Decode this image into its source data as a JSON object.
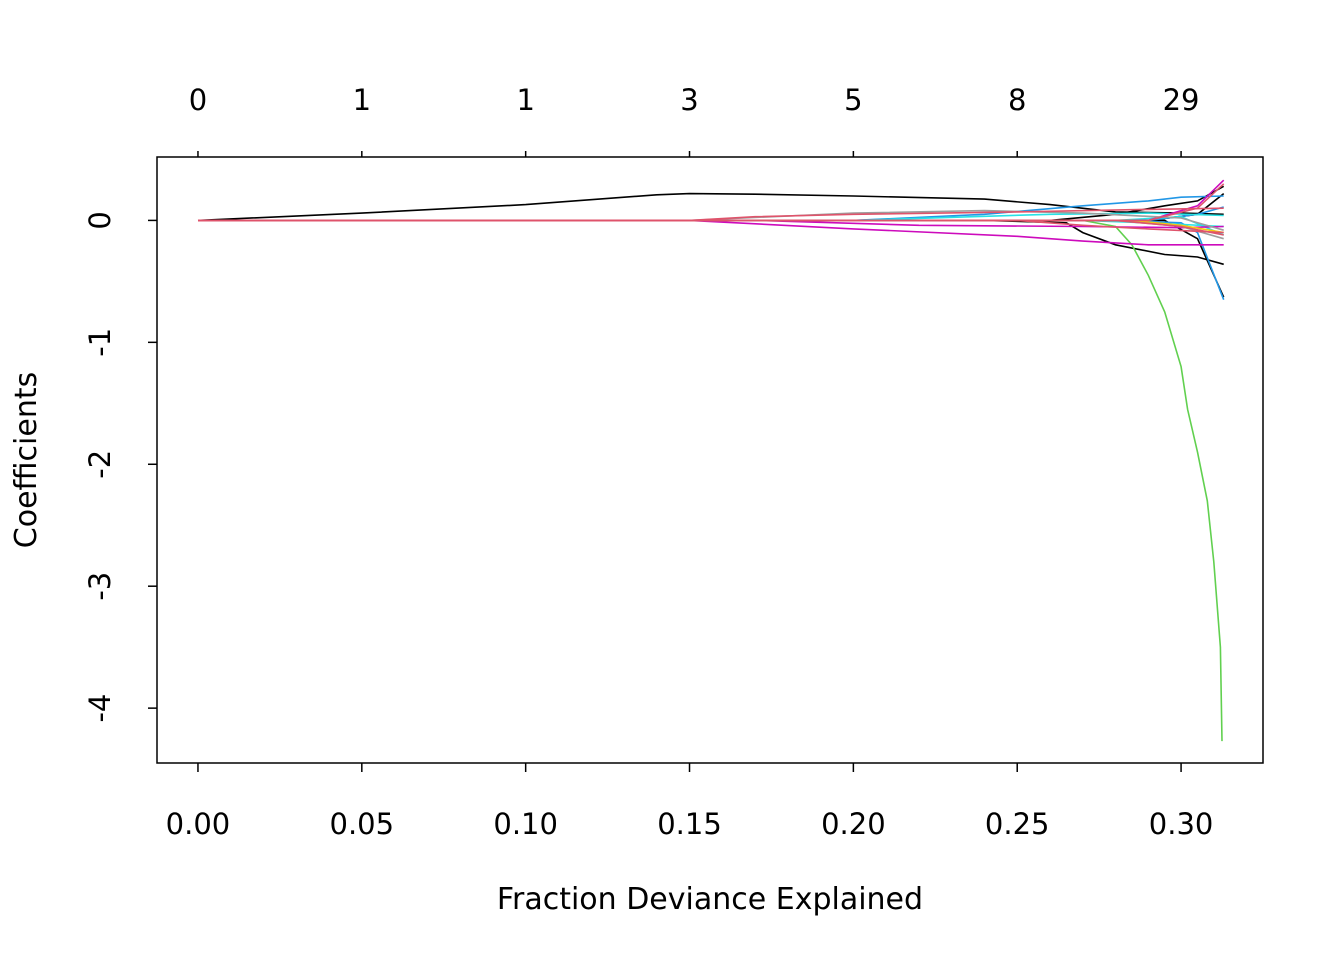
{
  "chart_data": {
    "type": "line",
    "title": "",
    "xlabel": "Fraction Deviance Explained",
    "ylabel": "Coefficients",
    "xlim": [
      -0.0125,
      0.325
    ],
    "ylim": [
      -4.45,
      0.52
    ],
    "grid": false,
    "x_ticks": [
      {
        "value": 0.0,
        "label": "0.00"
      },
      {
        "value": 0.05,
        "label": "0.05"
      },
      {
        "value": 0.1,
        "label": "0.10"
      },
      {
        "value": 0.15,
        "label": "0.15"
      },
      {
        "value": 0.2,
        "label": "0.20"
      },
      {
        "value": 0.25,
        "label": "0.25"
      },
      {
        "value": 0.3,
        "label": "0.30"
      }
    ],
    "y_ticks": [
      {
        "value": 0,
        "label": "0"
      },
      {
        "value": -1,
        "label": "-1"
      },
      {
        "value": -2,
        "label": "-2"
      },
      {
        "value": -3,
        "label": "-3"
      },
      {
        "value": -4,
        "label": "-4"
      }
    ],
    "top_ticks": [
      {
        "value": 0.0,
        "label": "0"
      },
      {
        "value": 0.05,
        "label": "1"
      },
      {
        "value": 0.1,
        "label": "1"
      },
      {
        "value": 0.15,
        "label": "3"
      },
      {
        "value": 0.2,
        "label": "5"
      },
      {
        "value": 0.25,
        "label": "8"
      },
      {
        "value": 0.3,
        "label": "29"
      }
    ],
    "series": [
      {
        "color": "#000000",
        "points": [
          [
            0,
            0
          ],
          [
            0.05,
            0.06
          ],
          [
            0.1,
            0.13
          ],
          [
            0.14,
            0.21
          ],
          [
            0.15,
            0.22
          ],
          [
            0.17,
            0.215
          ],
          [
            0.2,
            0.2
          ],
          [
            0.24,
            0.175
          ],
          [
            0.26,
            0.13
          ],
          [
            0.28,
            0.07
          ],
          [
            0.3,
            0.06
          ],
          [
            0.313,
            0.05
          ]
        ]
      },
      {
        "color": "#000000",
        "points": [
          [
            0,
            0
          ],
          [
            0.24,
            0
          ],
          [
            0.265,
            -0.02
          ],
          [
            0.27,
            -0.1
          ],
          [
            0.28,
            -0.2
          ],
          [
            0.295,
            -0.28
          ],
          [
            0.305,
            -0.3
          ],
          [
            0.313,
            -0.36
          ]
        ]
      },
      {
        "color": "#000000",
        "points": [
          [
            0,
            0
          ],
          [
            0.26,
            0
          ],
          [
            0.28,
            0.05
          ],
          [
            0.295,
            0.12
          ],
          [
            0.305,
            0.16
          ],
          [
            0.313,
            0.28
          ]
        ]
      },
      {
        "color": "#000000",
        "points": [
          [
            0,
            0
          ],
          [
            0.29,
            0
          ],
          [
            0.305,
            0.05
          ],
          [
            0.313,
            0.22
          ]
        ]
      },
      {
        "color": "#000000",
        "points": [
          [
            0,
            0
          ],
          [
            0.295,
            0
          ],
          [
            0.305,
            -0.15
          ],
          [
            0.313,
            -0.63
          ]
        ]
      },
      {
        "color": "#61D04F",
        "points": [
          [
            0,
            0
          ],
          [
            0.27,
            0
          ],
          [
            0.28,
            -0.05
          ],
          [
            0.285,
            -0.2
          ],
          [
            0.29,
            -0.45
          ],
          [
            0.295,
            -0.75
          ],
          [
            0.3,
            -1.2
          ],
          [
            0.302,
            -1.55
          ],
          [
            0.305,
            -1.9
          ],
          [
            0.308,
            -2.3
          ],
          [
            0.31,
            -2.8
          ],
          [
            0.312,
            -3.5
          ],
          [
            0.3125,
            -4.27
          ]
        ]
      },
      {
        "color": "#2297E6",
        "points": [
          [
            0,
            0
          ],
          [
            0.2,
            0
          ],
          [
            0.24,
            0.05
          ],
          [
            0.27,
            0.12
          ],
          [
            0.29,
            0.16
          ],
          [
            0.3,
            0.19
          ],
          [
            0.313,
            0.2
          ]
        ]
      },
      {
        "color": "#2297E6",
        "points": [
          [
            0,
            0
          ],
          [
            0.28,
            0
          ],
          [
            0.3,
            -0.02
          ],
          [
            0.305,
            -0.1
          ],
          [
            0.313,
            -0.65
          ]
        ]
      },
      {
        "color": "#2297E6",
        "points": [
          [
            0,
            0
          ],
          [
            0.29,
            0
          ],
          [
            0.305,
            0.05
          ],
          [
            0.313,
            0.11
          ]
        ]
      },
      {
        "color": "#28E2E5",
        "points": [
          [
            0,
            0
          ],
          [
            0.2,
            0
          ],
          [
            0.26,
            0.05
          ],
          [
            0.29,
            0.06
          ],
          [
            0.313,
            0.04
          ]
        ]
      },
      {
        "color": "#28E2E5",
        "points": [
          [
            0,
            0
          ],
          [
            0.27,
            0
          ],
          [
            0.29,
            -0.02
          ],
          [
            0.313,
            -0.05
          ]
        ]
      },
      {
        "color": "#28E2E5",
        "points": [
          [
            0,
            0
          ],
          [
            0.28,
            0
          ],
          [
            0.3,
            0.03
          ],
          [
            0.313,
            -0.12
          ]
        ]
      },
      {
        "color": "#CD0BBC",
        "points": [
          [
            0,
            0
          ],
          [
            0.15,
            0
          ],
          [
            0.2,
            -0.07
          ],
          [
            0.25,
            -0.13
          ],
          [
            0.27,
            -0.17
          ],
          [
            0.29,
            -0.2
          ],
          [
            0.313,
            -0.2
          ]
        ]
      },
      {
        "color": "#CD0BBC",
        "points": [
          [
            0,
            0
          ],
          [
            0.17,
            0
          ],
          [
            0.22,
            -0.04
          ],
          [
            0.27,
            -0.05
          ],
          [
            0.3,
            -0.06
          ],
          [
            0.313,
            -0.05
          ]
        ]
      },
      {
        "color": "#CD0BBC",
        "points": [
          [
            0,
            0
          ],
          [
            0.29,
            0
          ],
          [
            0.305,
            0.12
          ],
          [
            0.313,
            0.33
          ]
        ]
      },
      {
        "color": "#F5C710",
        "points": [
          [
            0,
            0
          ],
          [
            0.285,
            0
          ],
          [
            0.3,
            -0.04
          ],
          [
            0.313,
            -0.1
          ]
        ]
      },
      {
        "color": "#9E9E9E",
        "points": [
          [
            0,
            0
          ],
          [
            0.15,
            0
          ],
          [
            0.2,
            0.06
          ],
          [
            0.24,
            0.08
          ],
          [
            0.27,
            0.06
          ],
          [
            0.3,
            0.02
          ],
          [
            0.313,
            -0.08
          ]
        ]
      },
      {
        "color": "#9E9E9E",
        "points": [
          [
            0,
            0
          ],
          [
            0.28,
            0
          ],
          [
            0.3,
            -0.05
          ],
          [
            0.313,
            -0.15
          ]
        ]
      },
      {
        "color": "#DF536B",
        "points": [
          [
            0,
            0
          ],
          [
            0.15,
            0
          ],
          [
            0.17,
            0.03
          ],
          [
            0.2,
            0.05
          ],
          [
            0.25,
            0.07
          ],
          [
            0.29,
            0.09
          ],
          [
            0.313,
            0.1
          ]
        ]
      },
      {
        "color": "#DF536B",
        "points": [
          [
            0,
            0
          ],
          [
            0.25,
            0
          ],
          [
            0.27,
            -0.04
          ],
          [
            0.29,
            -0.07
          ],
          [
            0.313,
            -0.1
          ]
        ]
      },
      {
        "color": "#DF536B",
        "points": [
          [
            0,
            0
          ],
          [
            0.29,
            0
          ],
          [
            0.305,
            0.1
          ],
          [
            0.313,
            0.3
          ]
        ]
      },
      {
        "color": "#DF536B",
        "points": [
          [
            0,
            0
          ],
          [
            0.28,
            0
          ],
          [
            0.3,
            -0.05
          ],
          [
            0.313,
            -0.12
          ]
        ]
      }
    ]
  }
}
